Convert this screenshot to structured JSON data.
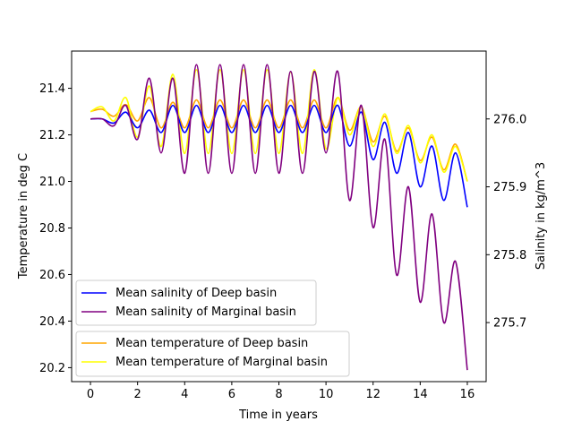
{
  "chart_data": {
    "type": "line",
    "title": "",
    "xlabel": "Time in years",
    "ylabel_left": "Temperature in deg C",
    "ylabel_right": "Salinity in kg/m^3",
    "xlim": [
      -0.8,
      16.8
    ],
    "ylim_left": [
      20.14,
      21.56
    ],
    "ylim_right": [
      275.613,
      276.1
    ],
    "x_ticks": [
      0,
      2,
      4,
      6,
      8,
      10,
      12,
      14,
      16
    ],
    "y_ticks_left": [
      20.2,
      20.4,
      20.6,
      20.8,
      21.0,
      21.2,
      21.4
    ],
    "y_ticks_right": [
      275.7,
      275.8,
      275.9,
      276.0
    ],
    "y_tick_labels_left": [
      "20.2",
      "20.4",
      "20.6",
      "20.8",
      "21.0",
      "21.2",
      "21.4"
    ],
    "y_tick_labels_right": [
      "275.7",
      "275.8",
      "275.9",
      "276.0"
    ],
    "grid": false,
    "x": [
      0,
      0.5,
      1,
      1.5,
      2,
      2.5,
      3,
      3.5,
      4,
      4.5,
      5,
      5.5,
      6,
      6.5,
      7,
      7.5,
      8,
      8.5,
      9,
      9.5,
      10,
      10.5,
      11,
      11.5,
      12,
      12.5,
      13,
      13.5,
      14,
      14.5,
      15,
      15.5,
      16
    ],
    "series": [
      {
        "name": "Mean temperature of Deep basin",
        "axis": "left",
        "color": "#ffa500",
        "values": [
          21.3,
          21.31,
          21.28,
          21.33,
          21.26,
          21.36,
          21.23,
          21.34,
          21.23,
          21.35,
          21.23,
          21.35,
          21.23,
          21.35,
          21.23,
          21.35,
          21.23,
          21.35,
          21.23,
          21.35,
          21.23,
          21.36,
          21.22,
          21.32,
          21.17,
          21.28,
          21.13,
          21.23,
          21.09,
          21.19,
          21.05,
          21.16,
          21.0
        ]
      },
      {
        "name": "Mean temperature of Marginal basin",
        "axis": "left",
        "color": "#ffff00",
        "values": [
          21.3,
          21.32,
          21.26,
          21.36,
          21.19,
          21.41,
          21.15,
          21.46,
          21.12,
          21.48,
          21.12,
          21.48,
          21.12,
          21.48,
          21.12,
          21.48,
          21.12,
          21.47,
          21.12,
          21.48,
          21.14,
          21.36,
          21.2,
          21.32,
          21.15,
          21.29,
          21.12,
          21.24,
          21.08,
          21.2,
          21.04,
          21.15,
          21.0
        ]
      },
      {
        "name": "Mean salinity of Deep basin",
        "axis": "right",
        "color": "#0000ff",
        "values": [
          276.0,
          276.0,
          275.994,
          276.01,
          275.987,
          276.013,
          275.98,
          276.02,
          275.98,
          276.02,
          275.98,
          276.02,
          275.98,
          276.02,
          275.98,
          276.02,
          275.98,
          276.02,
          275.98,
          276.02,
          275.98,
          276.02,
          275.96,
          276.01,
          275.94,
          275.995,
          275.92,
          275.98,
          275.9,
          275.96,
          275.88,
          275.95,
          275.87
        ]
      },
      {
        "name": "Mean salinity of Marginal basin",
        "axis": "right",
        "color": "#800080",
        "values": [
          276.0,
          276.0,
          275.99,
          276.02,
          275.97,
          276.06,
          275.95,
          276.06,
          275.92,
          276.08,
          275.92,
          276.08,
          275.92,
          276.08,
          275.92,
          276.08,
          275.92,
          276.07,
          275.92,
          276.07,
          275.95,
          276.07,
          275.88,
          276.02,
          275.84,
          275.97,
          275.77,
          275.9,
          275.73,
          275.86,
          275.7,
          275.79,
          275.63
        ]
      }
    ],
    "legends": [
      {
        "placement": "lower-left",
        "items": [
          "Mean salinity of Deep basin",
          "Mean salinity of Marginal basin"
        ]
      },
      {
        "placement": "lower-left",
        "items": [
          "Mean temperature of Deep basin",
          "Mean temperature of Marginal basin"
        ]
      }
    ]
  }
}
